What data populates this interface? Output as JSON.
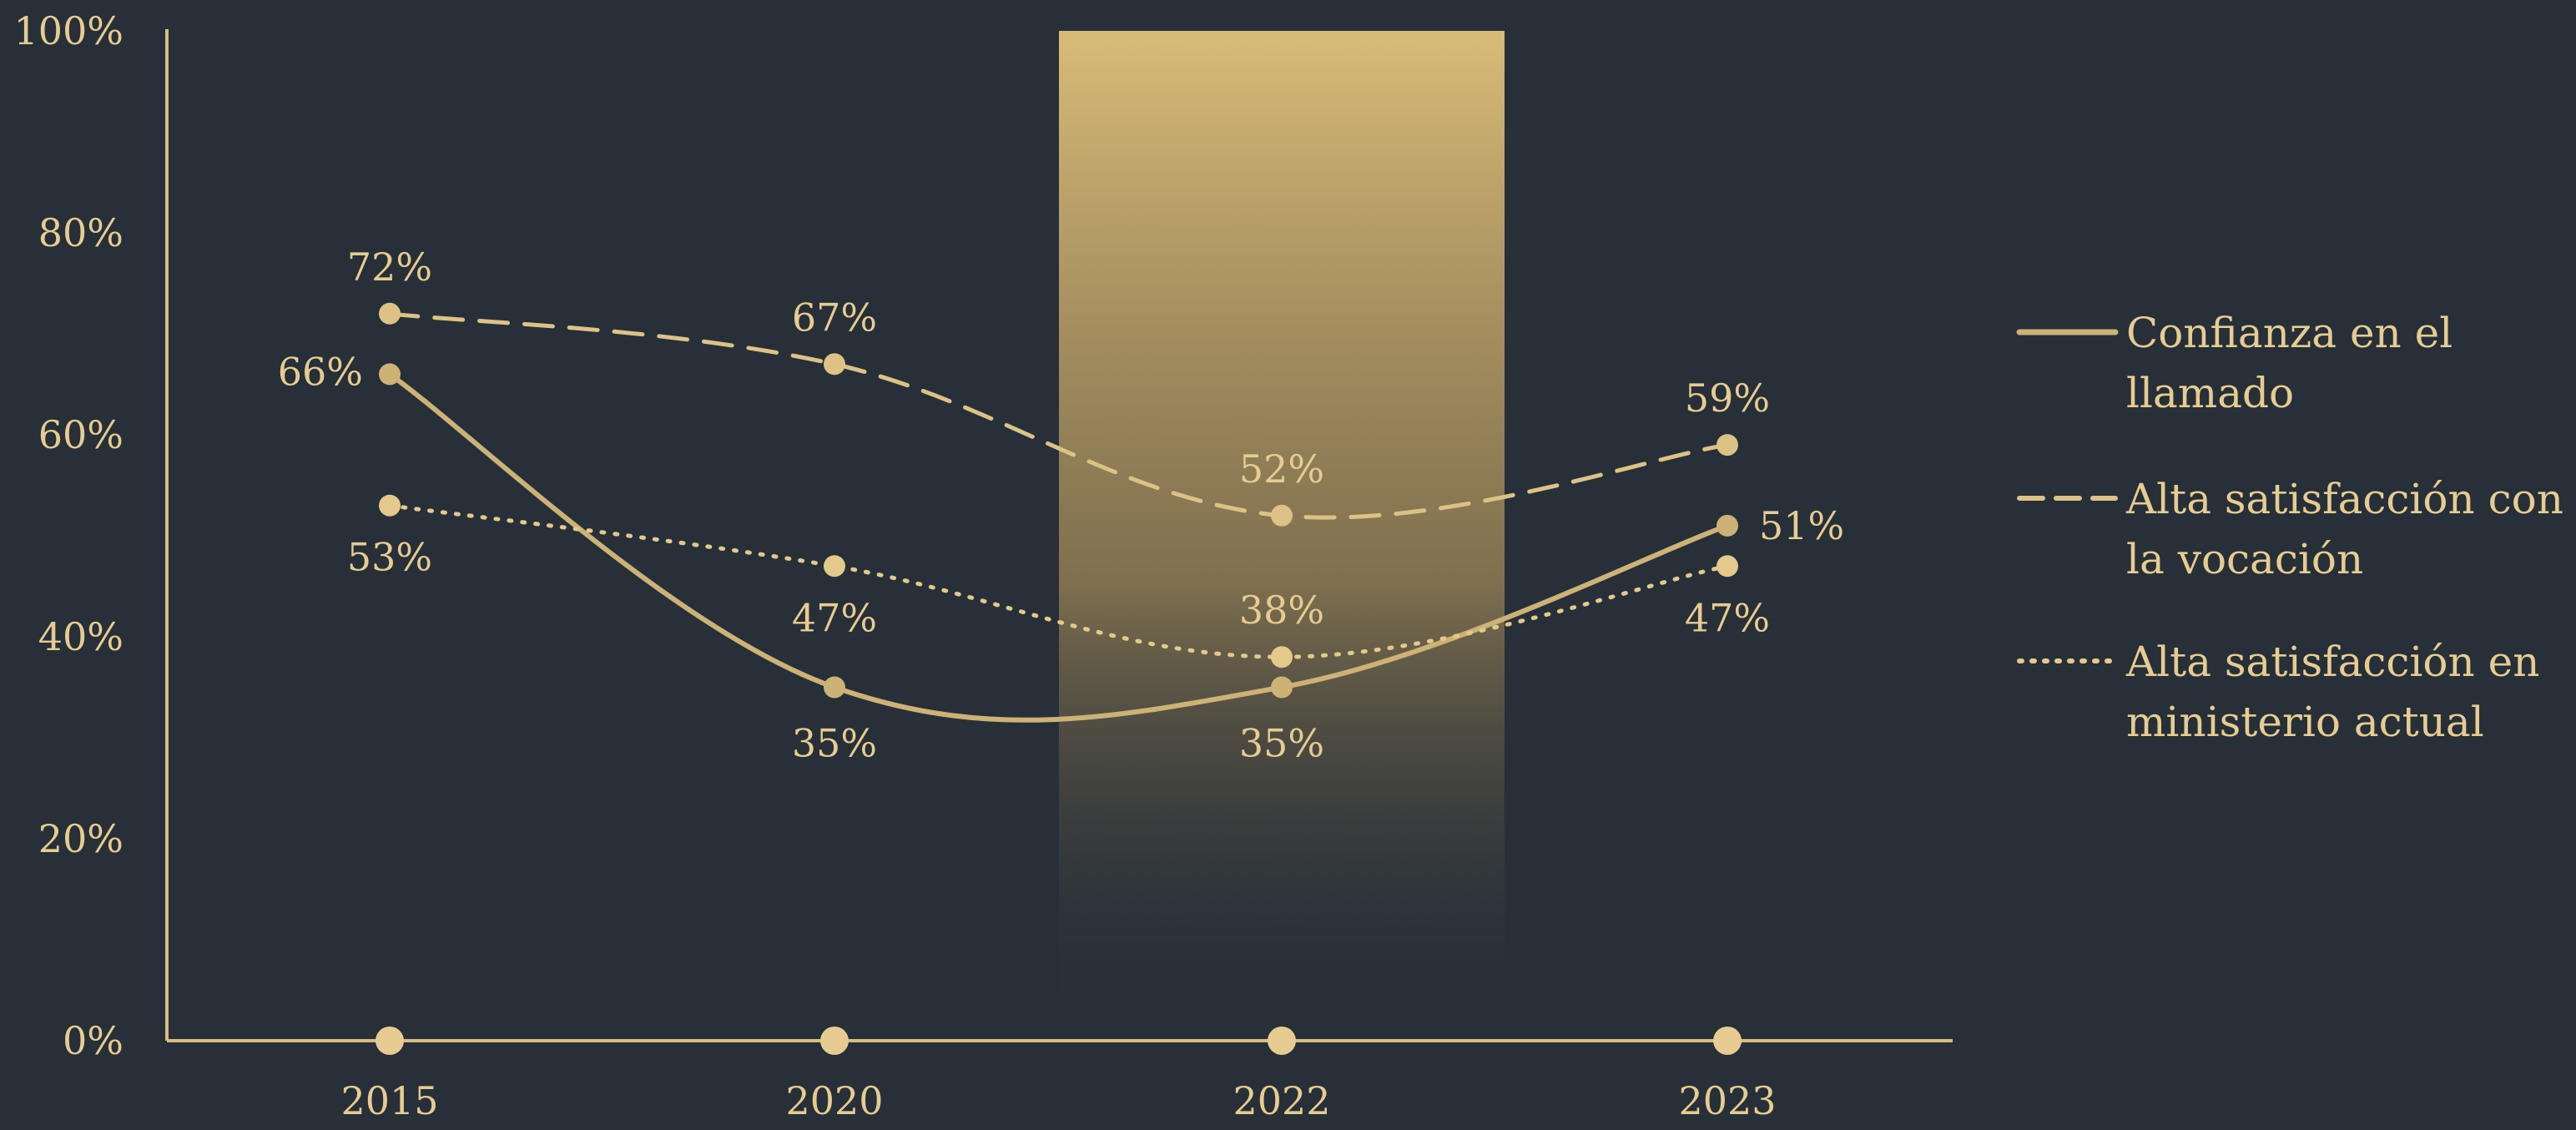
{
  "colors": {
    "background": "#272f38",
    "axis": "#d9bd7f",
    "text": "#e6cc90",
    "solid_series": "#cdb276",
    "dashed_series": "#dcc285",
    "dotted_series": "#e3c98a",
    "highlight_band_top": "#d9bb78"
  },
  "chart_data": {
    "type": "line",
    "categories": [
      "2015",
      "2020",
      "2022",
      "2023"
    ],
    "ylim": [
      0,
      100
    ],
    "yticks": [
      "0%",
      "20%",
      "40%",
      "60%",
      "80%",
      "100%"
    ],
    "ytick_values": [
      0,
      20,
      40,
      60,
      80,
      100
    ],
    "grid": false,
    "highlight_category": "2022",
    "legend_position": "right",
    "series": [
      {
        "name": "Confianza en el llamado",
        "name_lines": [
          "Confianza en el",
          "llamado"
        ],
        "style": "solid",
        "values": [
          66,
          35,
          35,
          51
        ],
        "labels": [
          "66%",
          "35%",
          "35%",
          "51%"
        ]
      },
      {
        "name": "Alta satisfacción con la vocación",
        "name_lines": [
          "Alta satisfacción con",
          "la vocación"
        ],
        "style": "dashed",
        "values": [
          72,
          67,
          52,
          59
        ],
        "labels": [
          "72%",
          "67%",
          "52%",
          "59%"
        ]
      },
      {
        "name": "Alta satisfacción en ministerio actual",
        "name_lines": [
          "Alta satisfacción en",
          "ministerio actual"
        ],
        "style": "dotted",
        "values": [
          53,
          47,
          38,
          47
        ],
        "labels": [
          "53%",
          "47%",
          "38%",
          "47%"
        ]
      }
    ]
  }
}
